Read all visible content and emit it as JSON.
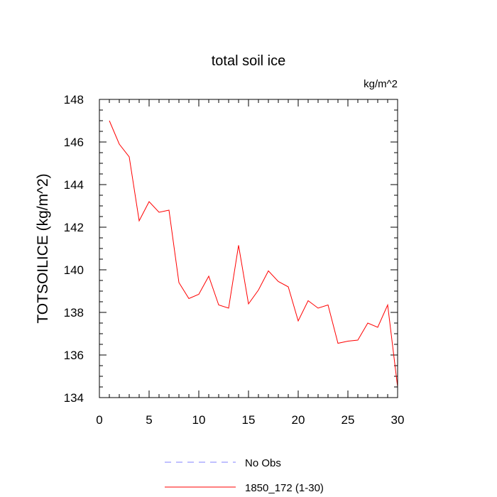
{
  "chart_data": {
    "type": "line",
    "title": "total soil ice",
    "units_label": "kg/m^2",
    "ylabel": "TOTSOILICE  (kg/m^2)",
    "xlabel": "",
    "xlim": [
      0,
      30
    ],
    "ylim": [
      134,
      148
    ],
    "xticks": [
      0,
      5,
      10,
      15,
      20,
      25,
      30
    ],
    "yticks": [
      134,
      136,
      138,
      140,
      142,
      144,
      146,
      148
    ],
    "x": [
      1,
      2,
      3,
      4,
      5,
      6,
      7,
      8,
      9,
      10,
      11,
      12,
      13,
      14,
      15,
      16,
      17,
      18,
      19,
      20,
      21,
      22,
      23,
      24,
      25,
      26,
      27,
      28,
      29,
      30
    ],
    "series": [
      {
        "name": "1850_172 (1-30)",
        "color": "#ff0000",
        "style": "solid",
        "values": [
          147.0,
          145.9,
          145.3,
          142.3,
          143.2,
          142.7,
          142.8,
          139.4,
          138.65,
          138.85,
          139.7,
          138.35,
          138.2,
          141.15,
          138.4,
          139.05,
          139.95,
          139.45,
          139.2,
          137.6,
          138.55,
          138.2,
          138.35,
          136.55,
          136.65,
          136.7,
          137.5,
          137.3,
          138.35,
          134.5
        ]
      }
    ],
    "legend": {
      "placement": "bottom",
      "entries": [
        {
          "label": "No Obs",
          "color": "#8080ff",
          "style": "dashed"
        },
        {
          "label": "1850_172 (1-30)",
          "color": "#ff0000",
          "style": "solid"
        }
      ]
    },
    "grid": false
  }
}
